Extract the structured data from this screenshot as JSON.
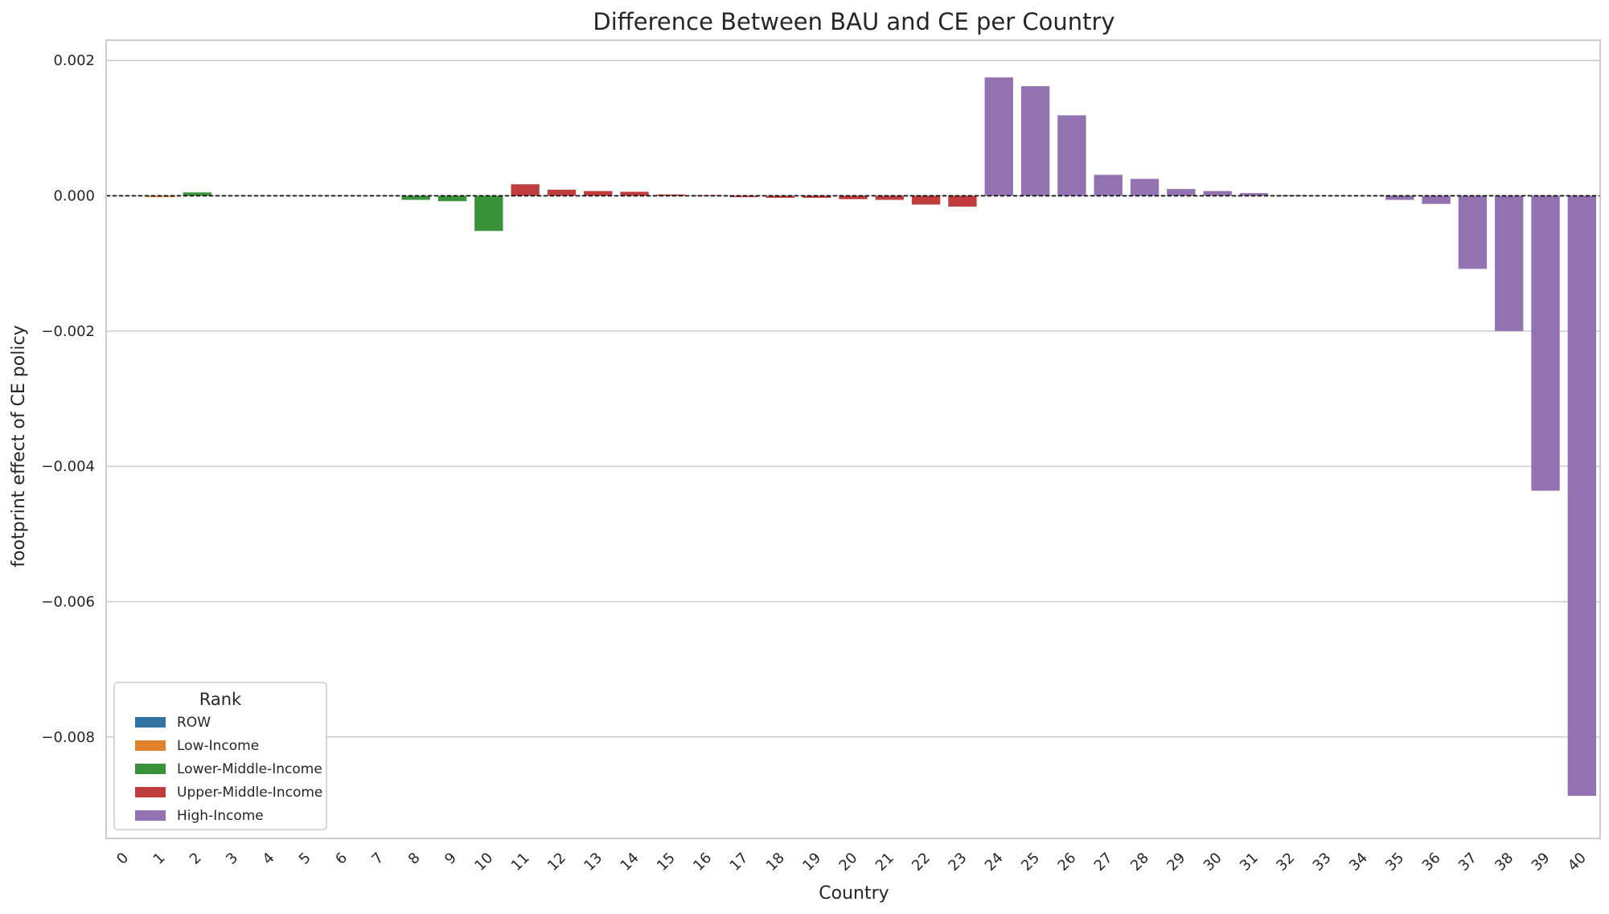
{
  "chart_data": {
    "type": "bar",
    "title": "Difference Between BAU and CE per Country",
    "xlabel": "Country",
    "ylabel": "footprint effect of CE policy",
    "ylim": [
      -0.0095,
      0.0023
    ],
    "grid": true,
    "y_ticks": [
      0.002,
      0.0,
      -0.002,
      -0.004,
      -0.006,
      -0.008
    ],
    "y_tick_labels": [
      "0.002",
      "0.000",
      "−0.002",
      "−0.004",
      "−0.006",
      "−0.008"
    ],
    "reference_line": 0,
    "categories": [
      "0",
      "1",
      "2",
      "3",
      "4",
      "5",
      "6",
      "7",
      "8",
      "9",
      "10",
      "11",
      "12",
      "13",
      "14",
      "15",
      "16",
      "17",
      "18",
      "19",
      "20",
      "21",
      "22",
      "23",
      "24",
      "25",
      "26",
      "27",
      "28",
      "29",
      "30",
      "31",
      "32",
      "33",
      "34",
      "35",
      "36",
      "37",
      "38",
      "39",
      "40"
    ],
    "values": [
      0.0,
      -2e-05,
      5e-05,
      0.0,
      0.0,
      0.0,
      0.0,
      0.0,
      -6e-05,
      -8e-05,
      -0.00052,
      0.00017,
      9e-05,
      7e-05,
      6e-05,
      2e-05,
      1e-05,
      -2e-05,
      -3e-05,
      -3e-05,
      -5e-05,
      -6e-05,
      -0.00013,
      -0.00016,
      0.00175,
      0.00162,
      0.00119,
      0.00031,
      0.00025,
      0.0001,
      7e-05,
      4e-05,
      1e-05,
      0.0,
      0.0,
      -6e-05,
      -0.00012,
      -0.00108,
      -0.002,
      -0.00436,
      -0.00887
    ],
    "ranks": [
      "ROW",
      "Low-Income",
      "Lower-Middle-Income",
      "Lower-Middle-Income",
      "Lower-Middle-Income",
      "Lower-Middle-Income",
      "Lower-Middle-Income",
      "Lower-Middle-Income",
      "Lower-Middle-Income",
      "Lower-Middle-Income",
      "Lower-Middle-Income",
      "Upper-Middle-Income",
      "Upper-Middle-Income",
      "Upper-Middle-Income",
      "Upper-Middle-Income",
      "Upper-Middle-Income",
      "Upper-Middle-Income",
      "Upper-Middle-Income",
      "Upper-Middle-Income",
      "Upper-Middle-Income",
      "Upper-Middle-Income",
      "Upper-Middle-Income",
      "Upper-Middle-Income",
      "Upper-Middle-Income",
      "High-Income",
      "High-Income",
      "High-Income",
      "High-Income",
      "High-Income",
      "High-Income",
      "High-Income",
      "High-Income",
      "High-Income",
      "High-Income",
      "High-Income",
      "High-Income",
      "High-Income",
      "High-Income",
      "High-Income",
      "High-Income",
      "High-Income"
    ],
    "legend": {
      "title": "Rank",
      "placement": "lower-left",
      "entries": [
        {
          "label": "ROW",
          "color": "#3274a1"
        },
        {
          "label": "Low-Income",
          "color": "#e1812c"
        },
        {
          "label": "Lower-Middle-Income",
          "color": "#3a923a"
        },
        {
          "label": "Upper-Middle-Income",
          "color": "#c03d3e"
        },
        {
          "label": "High-Income",
          "color": "#9372b2"
        }
      ]
    }
  }
}
